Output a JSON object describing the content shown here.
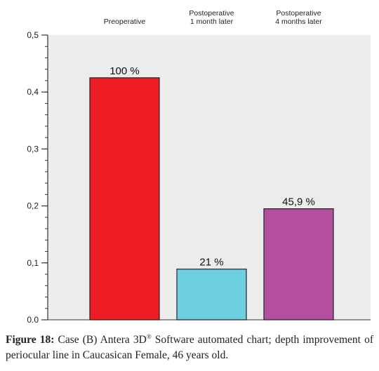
{
  "chart_data": {
    "type": "bar",
    "categories": [
      [
        "Preoperative"
      ],
      [
        "Postoperative",
        "1 month later"
      ],
      [
        "Postoperative",
        "4 months later"
      ]
    ],
    "values": [
      0.425,
      0.089,
      0.195
    ],
    "data_labels": [
      "100 %",
      "21 %",
      "45,9 %"
    ],
    "colors": [
      "#ee1d24",
      "#6dd0e0",
      "#b44fa0"
    ],
    "ylim": [
      0,
      0.5
    ],
    "yticks": [
      "0.0",
      "0,1",
      "0,2",
      "0,3",
      "0,4",
      "0,5"
    ],
    "ytick_values": [
      0,
      0.1,
      0.2,
      0.3,
      0.4,
      0.5
    ],
    "grid": false,
    "background": "#ececec",
    "title": "",
    "xlabel": "",
    "ylabel": ""
  },
  "caption": {
    "label": "Figure 18:",
    "text_before_sup": " Case (B) Antera 3D",
    "sup": "®",
    "text_after_sup": " Software automated chart; depth improvement of periocular line in Caucasican Female, 46 years old."
  }
}
